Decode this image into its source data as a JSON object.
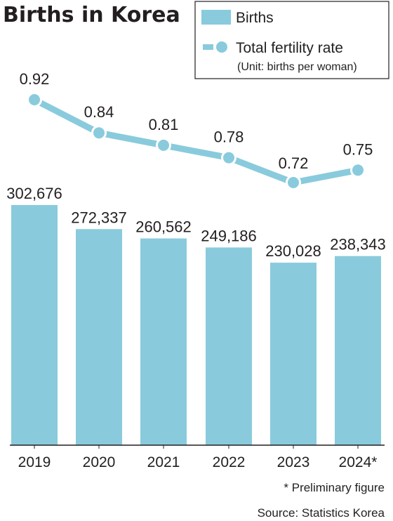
{
  "colors": {
    "bar": "#89cbdc",
    "line": "#89cbdc",
    "text": "#231f20",
    "axis": "#231f20"
  },
  "chart_data": {
    "type": "bar",
    "title": "Births in Korea",
    "categories": [
      "2019",
      "2020",
      "2021",
      "2022",
      "2023",
      "2024*"
    ],
    "series": [
      {
        "name": "Births",
        "type": "bar",
        "values": [
          302676,
          272337,
          260562,
          249186,
          230028,
          238343
        ],
        "labels": [
          "302,676",
          "272,337",
          "260,562",
          "249,186",
          "230,028",
          "238,343"
        ]
      },
      {
        "name": "Total fertility rate",
        "type": "line",
        "values": [
          0.92,
          0.84,
          0.81,
          0.78,
          0.72,
          0.75
        ],
        "labels": [
          "0.92",
          "0.84",
          "0.81",
          "0.78",
          "0.72",
          "0.75"
        ]
      }
    ],
    "legend": {
      "position": "top-right",
      "items": [
        "Births",
        "Total fertility rate"
      ],
      "unit_note": "(Unit: births per woman)"
    },
    "ylim": [
      0,
      310000
    ],
    "grid": false,
    "footnote": "* Preliminary figure",
    "source": "Source: Statistics Korea"
  }
}
